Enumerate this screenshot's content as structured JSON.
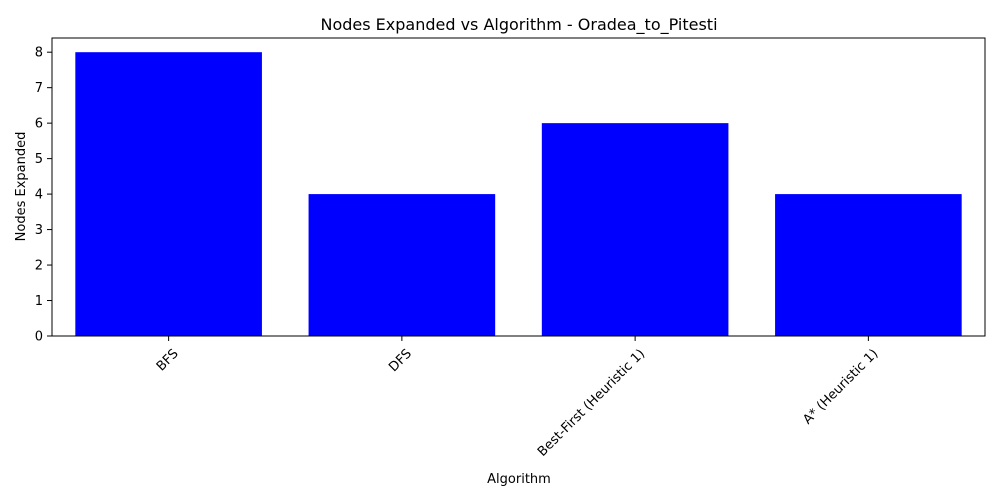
{
  "chart_data": {
    "type": "bar",
    "title": "Nodes Expanded vs Algorithm - Oradea_to_Pitesti",
    "xlabel": "Algorithm",
    "ylabel": "Nodes Expanded",
    "categories": [
      "BFS",
      "DFS",
      "Best-First (Heuristic 1)",
      "A* (Heuristic 1)"
    ],
    "values": [
      8,
      4,
      6,
      4
    ],
    "ylim": [
      0,
      8.4
    ],
    "yticks": [
      0,
      1,
      2,
      3,
      4,
      5,
      6,
      7,
      8
    ],
    "bar_color": "#0000ff",
    "grid": false,
    "legend": "none"
  }
}
